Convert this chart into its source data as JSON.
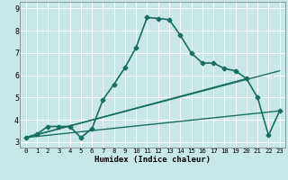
{
  "bg_color": "#c8e8e8",
  "grid_color": "#ffffff",
  "line_color": "#1a6e60",
  "xlim": [
    -0.5,
    23.5
  ],
  "ylim": [
    2.75,
    9.3
  ],
  "xticks": [
    0,
    1,
    2,
    3,
    4,
    5,
    6,
    7,
    8,
    9,
    10,
    11,
    12,
    13,
    14,
    15,
    16,
    17,
    18,
    19,
    20,
    21,
    22,
    23
  ],
  "yticks": [
    3,
    4,
    5,
    6,
    7,
    8,
    9
  ],
  "xlabel": "Humidex (Indice chaleur)",
  "main_line": {
    "x": [
      0,
      1,
      2,
      3,
      4,
      5,
      6,
      7,
      8,
      9,
      10,
      11,
      12,
      13,
      14,
      15,
      16,
      17,
      18,
      19,
      20,
      21,
      22,
      23
    ],
    "y": [
      3.2,
      3.35,
      3.7,
      3.7,
      3.7,
      3.2,
      3.6,
      4.9,
      5.6,
      6.35,
      7.25,
      8.6,
      8.55,
      8.5,
      7.8,
      7.0,
      6.55,
      6.55,
      6.3,
      6.2,
      5.85,
      5.0,
      3.3,
      4.4
    ]
  },
  "trend_lines": [
    {
      "x": [
        0,
        23
      ],
      "y": [
        3.2,
        6.2
      ]
    },
    {
      "x": [
        0,
        20
      ],
      "y": [
        3.2,
        5.85
      ]
    },
    {
      "x": [
        0,
        23
      ],
      "y": [
        3.2,
        4.4
      ]
    }
  ]
}
